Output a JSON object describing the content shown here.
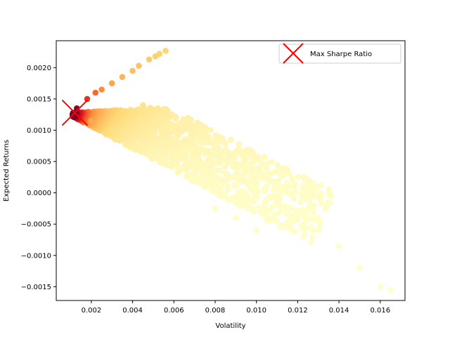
{
  "chart_data": {
    "type": "scatter",
    "title": "",
    "xlabel": "Volatility",
    "ylabel": "Expected Returns",
    "xlim": [
      0.0003,
      0.0172
    ],
    "ylim": [
      -0.00172,
      0.00243
    ],
    "xticks": [
      0.002,
      0.004,
      0.006,
      0.008,
      0.01,
      0.012,
      0.014,
      0.016
    ],
    "xtick_labels": [
      "0.002",
      "0.004",
      "0.006",
      "0.008",
      "0.010",
      "0.012",
      "0.014",
      "0.016"
    ],
    "yticks": [
      -0.0015,
      -0.001,
      -0.0005,
      0.0,
      0.0005,
      0.001,
      0.0015,
      0.002
    ],
    "ytick_labels": [
      "−0.0015",
      "−0.0010",
      "−0.0005",
      "0.0000",
      "0.0005",
      "0.0010",
      "0.0015",
      "0.0020"
    ],
    "colormap": "YlOrRd",
    "color_by": "sharpe_ratio",
    "series": [
      {
        "name": "portfolios",
        "points": [
          [
            0.0013,
            0.00135
          ],
          [
            0.0018,
            0.0015
          ],
          [
            0.0022,
            0.0016
          ],
          [
            0.0025,
            0.00165
          ],
          [
            0.003,
            0.00175
          ],
          [
            0.0035,
            0.00185
          ],
          [
            0.004,
            0.00195
          ],
          [
            0.0043,
            0.00203
          ],
          [
            0.0048,
            0.00213
          ],
          [
            0.0051,
            0.00218
          ],
          [
            0.0053,
            0.00222
          ],
          [
            0.0056,
            0.00227
          ],
          [
            0.002,
            0.00115
          ],
          [
            0.003,
            0.001
          ],
          [
            0.004,
            0.00085
          ],
          [
            0.005,
            0.0007
          ],
          [
            0.006,
            0.00055
          ],
          [
            0.007,
            0.0004
          ],
          [
            0.008,
            0.00025
          ],
          [
            0.009,
            0.0001
          ],
          [
            0.01,
            -5e-05
          ],
          [
            0.011,
            -0.0002
          ],
          [
            0.012,
            -0.0004
          ],
          [
            0.013,
            -0.0006
          ],
          [
            0.014,
            -0.00085
          ],
          [
            0.015,
            -0.0012
          ],
          [
            0.016,
            -0.0015
          ],
          [
            0.0165,
            -0.00155
          ],
          [
            0.0045,
            0.0014
          ],
          [
            0.0055,
            0.0013
          ],
          [
            0.0065,
            0.00115
          ],
          [
            0.0075,
            0.00095
          ],
          [
            0.0085,
            0.0007
          ],
          [
            0.0095,
            0.00045
          ],
          [
            0.0105,
            0.0003
          ],
          [
            0.0115,
            0.00015
          ],
          [
            0.0125,
            5e-05
          ],
          [
            0.0135,
            0.0
          ],
          [
            0.0128,
            -0.0002
          ],
          [
            0.012,
            -0.00035
          ],
          [
            0.011,
            -0.00045
          ],
          [
            0.01,
            -0.0006
          ],
          [
            0.009,
            -0.0004
          ],
          [
            0.008,
            -0.00025
          ]
        ]
      }
    ],
    "max_sharpe": {
      "x": 0.0012,
      "y": 0.00128,
      "label": "Max Sharpe Ratio",
      "marker_color": "#ff0000"
    },
    "legend": {
      "placement": "upper-right",
      "entries": [
        "Max Sharpe Ratio"
      ]
    },
    "grid": false
  }
}
